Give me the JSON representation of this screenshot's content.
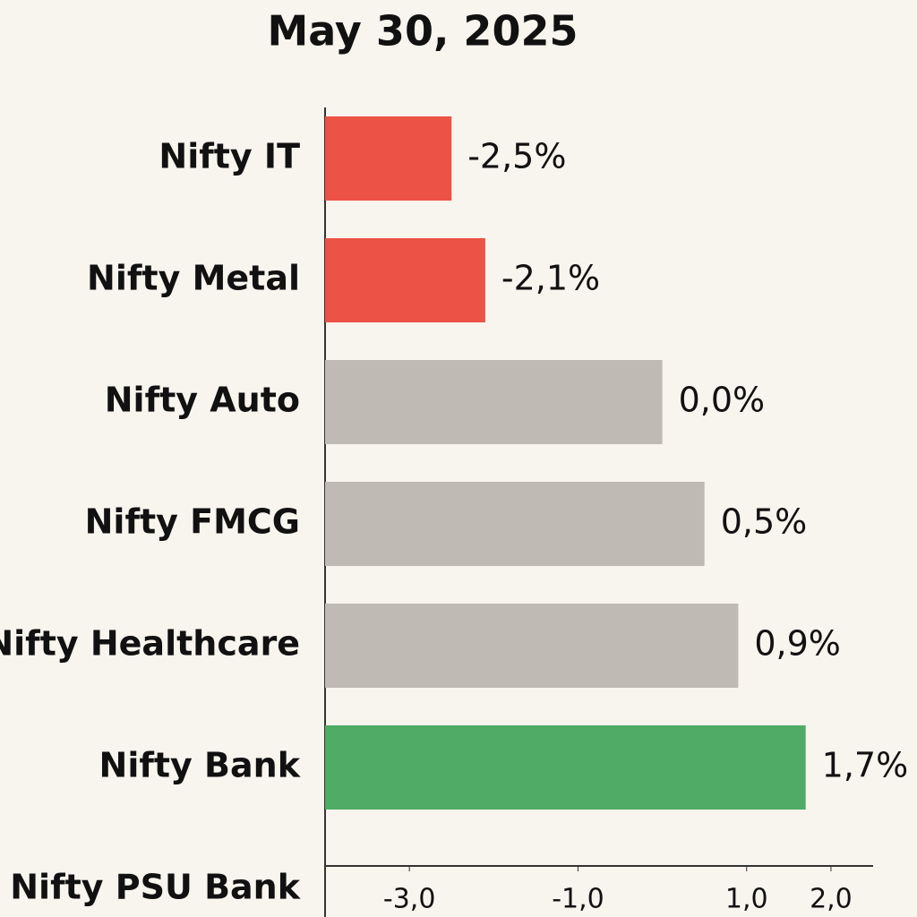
{
  "chart_data": {
    "type": "hbar",
    "title": "May 30, 2025",
    "categories": [
      "Nifty IT",
      "Nifty Metal",
      "Nifty Auto",
      "Nifty FMCG",
      "Nifty Healthcare",
      "Nifty Bank",
      "Nifty PSU Bank"
    ],
    "values": [
      -2.5,
      -2.1,
      0.0,
      0.5,
      0.9,
      1.7,
      null
    ],
    "value_labels": [
      "-2,5%",
      "-2,1%",
      "0,0%",
      "0,5%",
      "0,9%",
      "1,7%",
      null
    ],
    "colors": [
      "#ec5246",
      "#ec5246",
      "#bfbab3",
      "#bfbab3",
      "#bfbab3",
      "#4fab66",
      null
    ],
    "xlim": [
      -4,
      2.5
    ],
    "xticks": [
      {
        "value": -3,
        "label": "-3,0"
      },
      {
        "value": -1,
        "label": "-1,0"
      },
      {
        "value": 1,
        "label": "1,0"
      },
      {
        "value": 2,
        "label": "2,0"
      }
    ]
  }
}
